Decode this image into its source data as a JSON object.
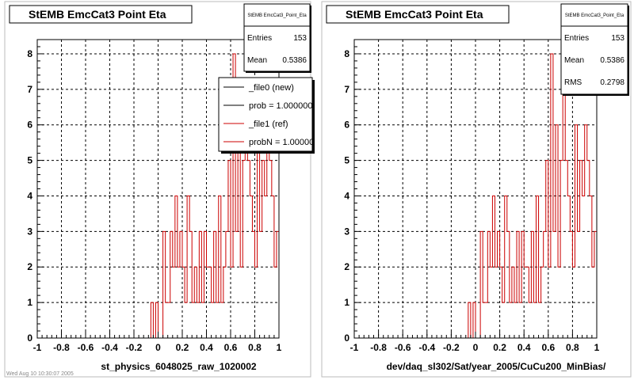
{
  "chart_data": [
    {
      "type": "histogram",
      "title": "StEMB EmcCat3 Point Eta",
      "xlabel": "st_physics_6048025_raw_1020002",
      "ylabel": "",
      "xlim": [
        -1,
        1
      ],
      "ylim": [
        0,
        8.4
      ],
      "xticks": [
        "-1",
        "-0.8",
        "-0.6",
        "-0.4",
        "-0.2",
        "0",
        "0.2",
        "0.4",
        "0.6",
        "0.8",
        "1"
      ],
      "yticks": [
        "0",
        "1",
        "2",
        "3",
        "4",
        "5",
        "6",
        "7",
        "8"
      ],
      "grid": true,
      "stats": {
        "header": "StEMB EmcCat3_Point_Eta",
        "rows": [
          {
            "label": "Entries",
            "value": "153"
          },
          {
            "label": "Mean",
            "value": "0.5386"
          }
        ]
      },
      "legend": {
        "placement": "top-right",
        "entries": [
          {
            "label": "_file0 (new)",
            "color": "#000000"
          },
          {
            "label": "prob = 1.000000",
            "color": "#000000"
          },
          {
            "label": "_file1 (ref)",
            "color": "#cc0000"
          },
          {
            "label": "probN = 1.000000",
            "color": "#cc0000"
          }
        ]
      },
      "series": [
        {
          "color": "#cc0000",
          "bin_width": 0.02,
          "x_start": -1,
          "values": [
            0,
            0,
            0,
            0,
            0,
            0,
            0,
            0,
            0,
            0,
            0,
            0,
            0,
            0,
            0,
            0,
            0,
            0,
            0,
            0,
            0,
            0,
            0,
            0,
            0,
            0,
            0,
            0,
            0,
            0,
            0,
            0,
            0,
            0,
            0,
            0,
            0,
            0,
            0,
            0,
            0,
            0,
            0,
            0,
            0,
            0,
            0,
            1,
            0,
            1,
            0,
            0,
            3,
            1,
            1,
            3,
            2,
            4,
            2,
            3,
            2,
            1,
            4,
            3,
            1,
            2,
            1,
            3,
            1,
            3,
            2,
            2,
            1,
            3,
            1,
            4,
            1,
            2,
            3,
            5,
            2,
            8,
            3,
            6,
            2,
            5,
            7,
            5,
            4,
            3,
            2,
            6,
            3,
            5,
            4,
            6,
            5,
            4,
            2,
            3
          ]
        }
      ]
    },
    {
      "type": "histogram",
      "title": "StEMB EmcCat3 Point Eta",
      "xlabel": "dev/daq_sl302/Sat/year_2005/CuCu200_MinBias/",
      "ylabel": "",
      "xlim": [
        -1,
        1
      ],
      "ylim": [
        0,
        8.4
      ],
      "xticks": [
        "-1",
        "-0.8",
        "-0.6",
        "-0.4",
        "-0.2",
        "0",
        "0.2",
        "0.4",
        "0.6",
        "0.8",
        "1"
      ],
      "yticks": [
        "0",
        "1",
        "2",
        "3",
        "4",
        "5",
        "6",
        "7",
        "8"
      ],
      "grid": true,
      "stats": {
        "header": "StEMB EmcCat3_Point_Eta",
        "rows": [
          {
            "label": "Entries",
            "value": "153"
          },
          {
            "label": "Mean",
            "value": "0.5386"
          },
          {
            "label": "RMS",
            "value": "0.2798"
          }
        ]
      },
      "series": [
        {
          "color": "#cc0000",
          "bin_width": 0.02,
          "x_start": -1,
          "values": [
            0,
            0,
            0,
            0,
            0,
            0,
            0,
            0,
            0,
            0,
            0,
            0,
            0,
            0,
            0,
            0,
            0,
            0,
            0,
            0,
            0,
            0,
            0,
            0,
            0,
            0,
            0,
            0,
            0,
            0,
            0,
            0,
            0,
            0,
            0,
            0,
            0,
            0,
            0,
            0,
            0,
            0,
            0,
            0,
            0,
            0,
            0,
            1,
            0,
            1,
            0,
            0,
            3,
            1,
            1,
            3,
            2,
            4,
            2,
            3,
            2,
            1,
            4,
            3,
            1,
            2,
            1,
            3,
            1,
            3,
            2,
            2,
            1,
            3,
            1,
            4,
            1,
            2,
            3,
            5,
            2,
            8,
            3,
            6,
            2,
            5,
            7,
            5,
            4,
            3,
            2,
            6,
            3,
            5,
            4,
            6,
            5,
            4,
            2,
            3
          ]
        }
      ]
    }
  ],
  "footer_text": "Wed Aug 10 10:30:07 2005"
}
